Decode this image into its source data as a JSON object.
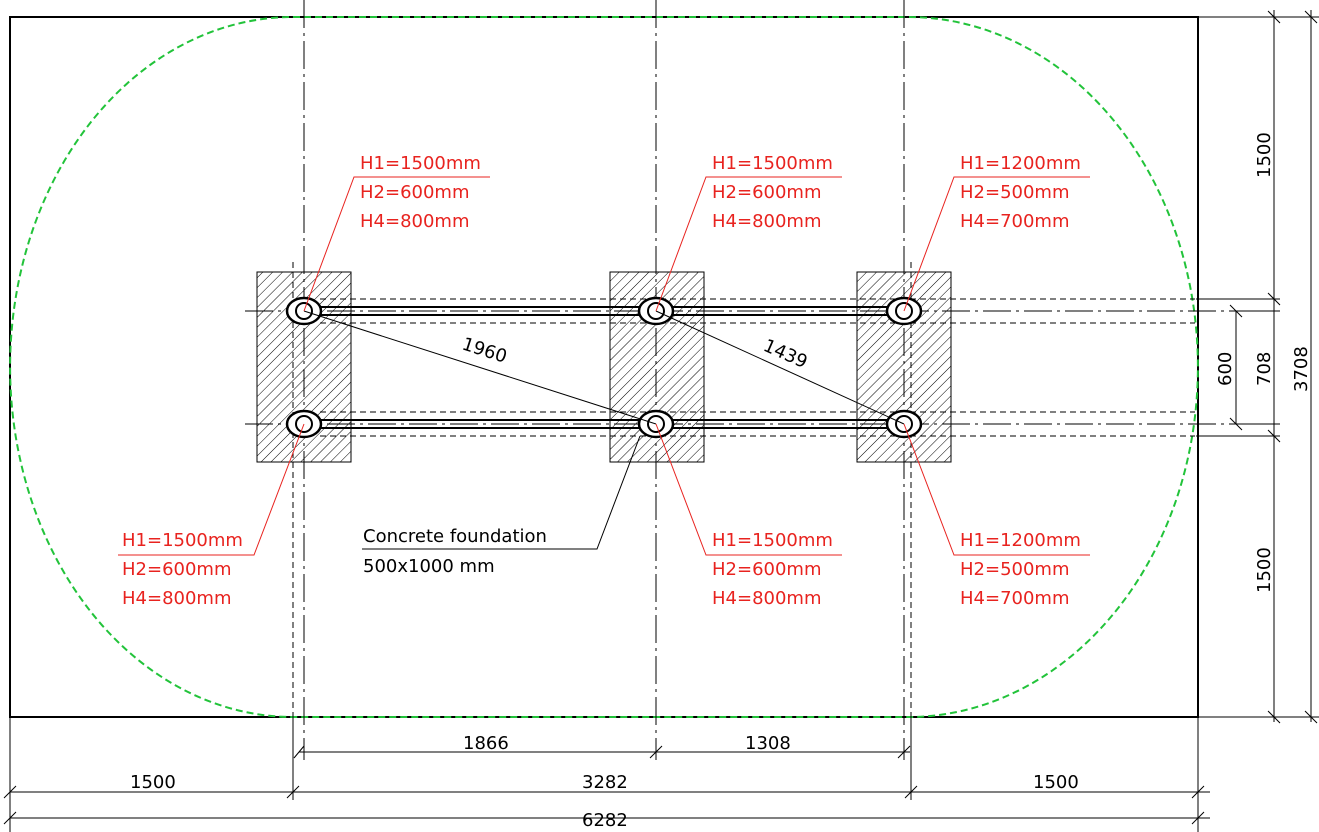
{
  "colors": {
    "line": "#000000",
    "label": "#e8231f",
    "safety_zone": "#22c33a"
  },
  "posts": [
    {
      "id": "post-top-left",
      "labels": [
        "H1=1500mm",
        "H2=600mm",
        "H4=800mm"
      ]
    },
    {
      "id": "post-top-middle",
      "labels": [
        "H1=1500mm",
        "H2=600mm",
        "H4=800mm"
      ]
    },
    {
      "id": "post-top-right",
      "labels": [
        "H1=1200mm",
        "H2=500mm",
        "H4=700mm"
      ]
    },
    {
      "id": "post-bottom-left",
      "labels": [
        "H1=1500mm",
        "H2=600mm",
        "H4=800mm"
      ]
    },
    {
      "id": "post-bottom-middle",
      "labels": [
        "H1=1500mm",
        "H2=600mm",
        "H4=800mm"
      ]
    },
    {
      "id": "post-bottom-right",
      "labels": [
        "H1=1200mm",
        "H2=500mm",
        "H4=700mm"
      ]
    }
  ],
  "foundation": {
    "title": "Concrete foundation",
    "size": "500x1000 mm"
  },
  "dimensions": {
    "diagonal_left": "1960",
    "diagonal_right": "1439",
    "bottom_left_spacing": "1866",
    "bottom_right_spacing": "1308",
    "bottom_left_margin": "1500",
    "bottom_middle": "3282",
    "bottom_right_margin": "1500",
    "bottom_total": "6282",
    "right_top_margin": "1500",
    "right_bottom_margin": "1500",
    "right_inner": "600",
    "right_spacing": "708",
    "right_total": "3708"
  }
}
